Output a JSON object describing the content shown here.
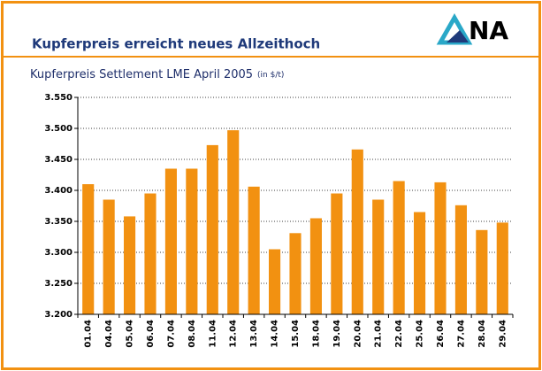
{
  "header": {
    "title": "Kupferpreis erreicht neues Allzeithoch",
    "logo": "NA"
  },
  "chart_data": {
    "type": "bar",
    "title": "Kupferpreis Settlement LME April 2005",
    "unit": "(in $/t)",
    "categories": [
      "01.04",
      "04.04",
      "05.04",
      "06.04",
      "07.04",
      "08.04",
      "11.04",
      "12.04",
      "13.04",
      "14.04",
      "15.04",
      "18.04",
      "19.04",
      "20.04",
      "21.04",
      "22.04",
      "25.04",
      "26.04",
      "27.04",
      "28.04",
      "29.04"
    ],
    "values": [
      3410,
      3385,
      3358,
      3395,
      3435,
      3435,
      3473,
      3497,
      3406,
      3305,
      3331,
      3355,
      3395,
      3466,
      3385,
      3415,
      3365,
      3413,
      3376,
      3336,
      3348
    ],
    "color": "#f29111",
    "ylim": [
      3200,
      3550
    ],
    "yticks": [
      {
        "value": 3200,
        "label": "3.200"
      },
      {
        "value": 3250,
        "label": "3.250"
      },
      {
        "value": 3300,
        "label": "3.300"
      },
      {
        "value": 3350,
        "label": "3.350"
      },
      {
        "value": 3400,
        "label": "3.400"
      },
      {
        "value": 3450,
        "label": "3.450"
      },
      {
        "value": 3500,
        "label": "3.500"
      },
      {
        "value": 3550,
        "label": "3.550"
      }
    ],
    "grid": true
  }
}
